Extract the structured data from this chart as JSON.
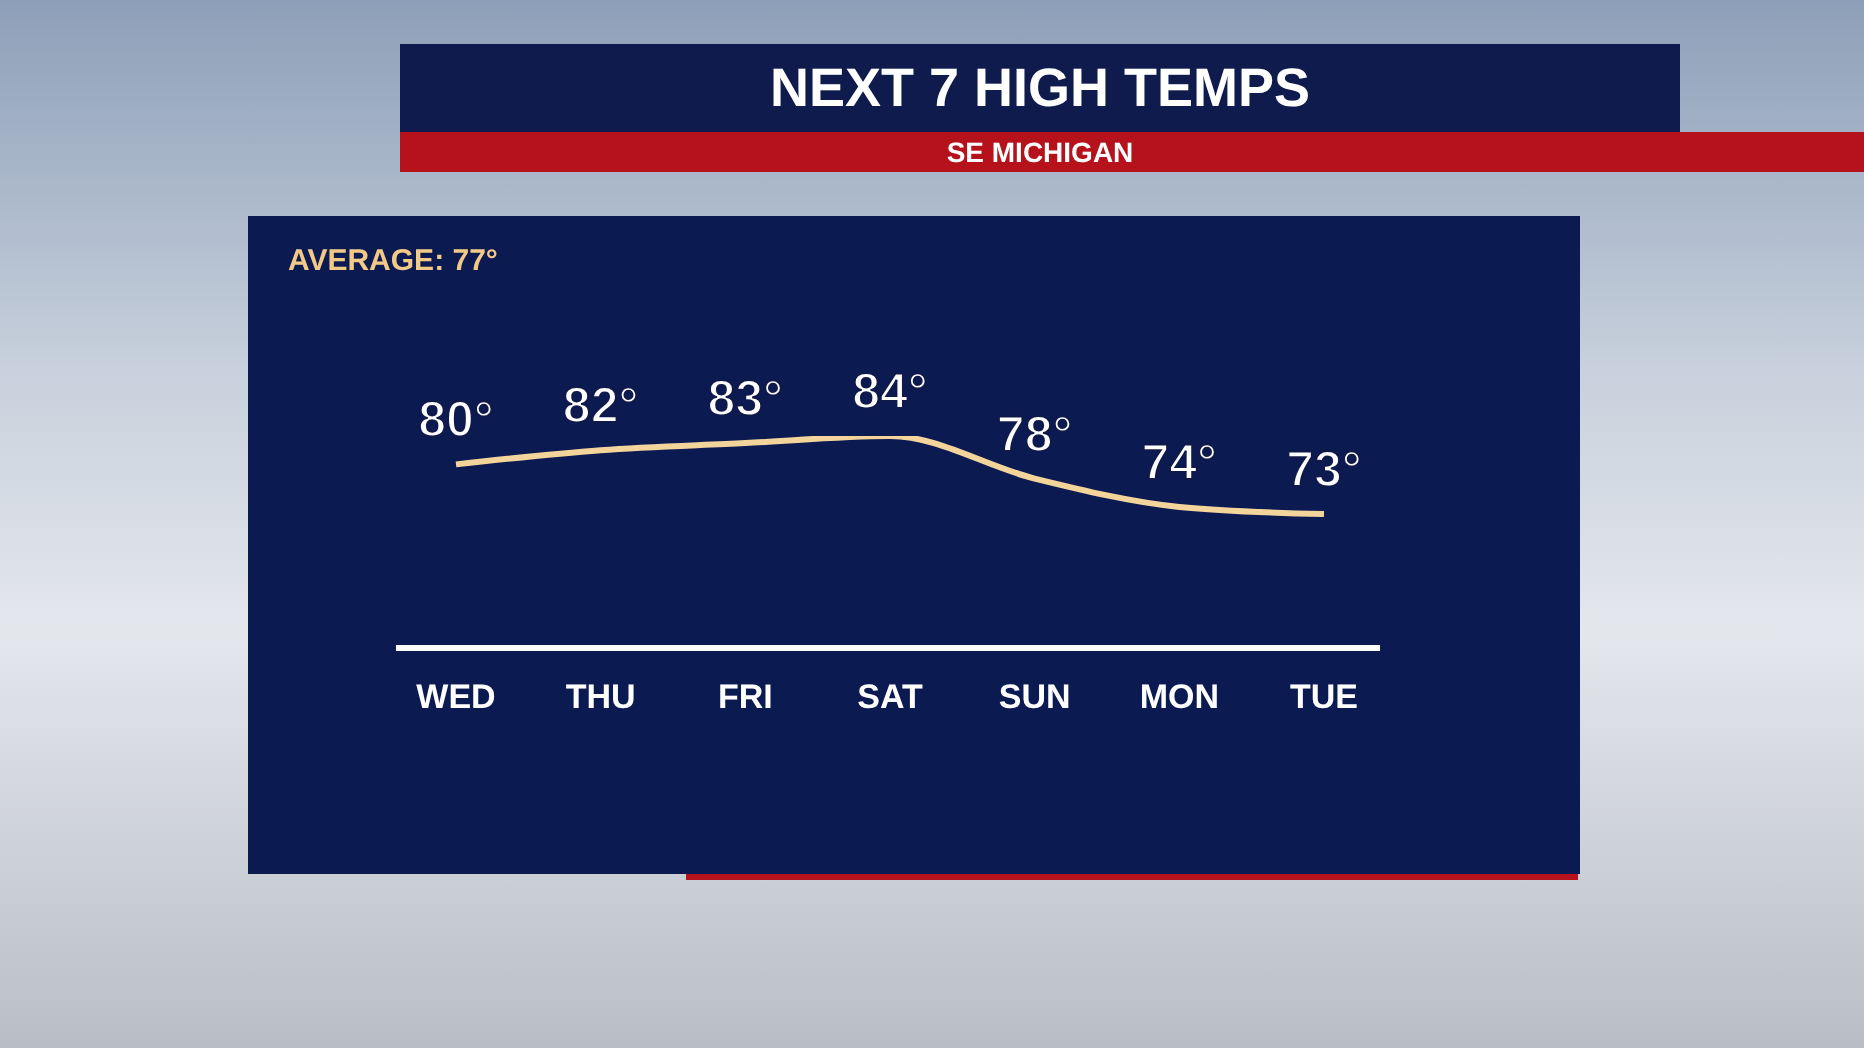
{
  "chart_data": {
    "type": "line",
    "title": "NEXT 7 HIGH TEMPS",
    "subtitle": "SE MICHIGAN",
    "annotations": [
      "AVERAGE: 77°"
    ],
    "categories": [
      "WED",
      "THU",
      "FRI",
      "SAT",
      "SUN",
      "MON",
      "TUE"
    ],
    "values": [
      80,
      82,
      83,
      84,
      78,
      74,
      73
    ],
    "value_labels": [
      "80°",
      "82°",
      "83°",
      "84°",
      "78°",
      "74°",
      "73°"
    ],
    "color": "#f3d49b"
  }
}
